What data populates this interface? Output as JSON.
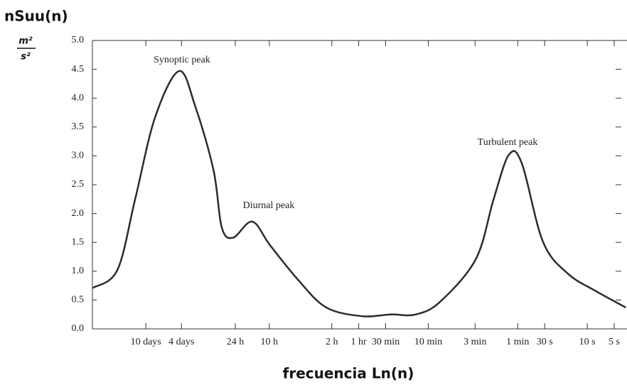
{
  "chart_data": {
    "type": "line",
    "y_label": "nSuu(n)",
    "y_unit": {
      "numerator": "m²",
      "denominator": "s²"
    },
    "x_label": "frecuencia Ln(n)",
    "xscale": "log",
    "xlim": [
      950,
      0.001
    ],
    "ylim": [
      0,
      5
    ],
    "yticks": [
      {
        "value": 0,
        "label": "0.0"
      },
      0.5,
      {
        "value": 1,
        "label": "1.0"
      },
      1.5,
      {
        "value": 2,
        "label": "2.0"
      },
      2.5,
      {
        "value": 3,
        "label": "3.0"
      },
      3.5,
      {
        "value": 4,
        "label": "4.0"
      },
      4.5,
      {
        "value": 5,
        "label": "5.0"
      }
    ],
    "xticks": [
      {
        "value": 240,
        "label": "10 days"
      },
      {
        "value": 96,
        "label": "4 days"
      },
      {
        "value": 24,
        "label": "24 h"
      },
      {
        "value": 10,
        "label": "10 h"
      },
      {
        "value": 2,
        "label": "2 h"
      },
      {
        "value": 1,
        "label": "1 hr"
      },
      {
        "value": 0.5,
        "label": "30 min"
      },
      {
        "value": 0.1667,
        "label": "10 min"
      },
      {
        "value": 0.05,
        "label": "3 min"
      },
      {
        "value": 0.01667,
        "label": "1 min"
      },
      {
        "value": 0.00833,
        "label": "30 s"
      },
      {
        "value": 0.00278,
        "label": "10 s"
      },
      {
        "value": 0.00139,
        "label": "5 s"
      }
    ],
    "series": [
      {
        "name": "nSuu(n)",
        "color": "#2b2b33",
        "x": [
          944,
          500,
          316,
          189,
          102,
          67,
          42,
          34,
          25.4,
          15.5,
          9.8,
          4.7,
          2.3,
          0.92,
          0.44,
          0.23,
          0.123,
          0.049,
          0.031,
          0.0209,
          0.015,
          0.0087,
          0.0046,
          0.0022,
          0.00103
        ],
        "values": [
          0.71,
          1.02,
          2.25,
          3.67,
          4.47,
          3.85,
          2.75,
          1.76,
          1.58,
          1.86,
          1.45,
          0.84,
          0.37,
          0.22,
          0.25,
          0.25,
          0.47,
          1.21,
          2.25,
          3.02,
          2.87,
          1.51,
          0.96,
          0.65,
          0.37
        ]
      }
    ],
    "annotations": [
      "Synoptic peak",
      "Diurnal peak",
      "Turbulent peak"
    ]
  }
}
